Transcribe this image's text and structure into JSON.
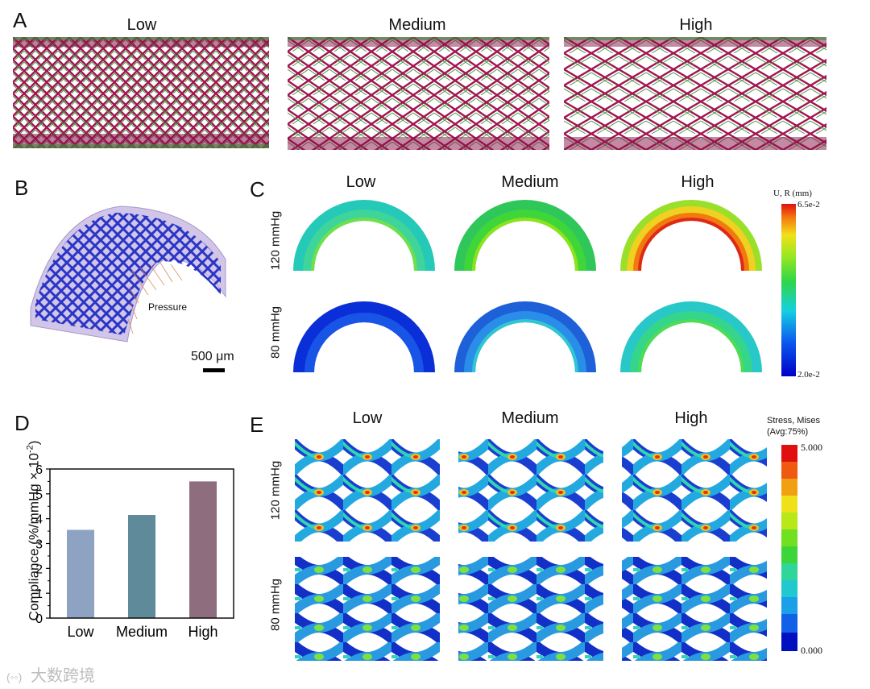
{
  "panels": {
    "a": {
      "label": "A",
      "titles": [
        "Low",
        "Medium",
        "High"
      ]
    },
    "b": {
      "label": "B",
      "pressure_label": "Pressure",
      "scalebar_label": "500 μm"
    },
    "c": {
      "label": "C",
      "titles": [
        "Low",
        "Medium",
        "High"
      ],
      "rows": [
        "120 mmHg",
        "80 mmHg"
      ],
      "colorbar": {
        "title": "U, R (mm)",
        "max": "6.5e-2",
        "min": "2.0e-2"
      }
    },
    "d": {
      "label": "D"
    },
    "e": {
      "label": "E",
      "titles": [
        "Low",
        "Medium",
        "High"
      ],
      "rows": [
        "120 mmHg",
        "80 mmHg"
      ],
      "colorbar": {
        "title_line1": "Stress, Mises",
        "title_line2": "(Avg:75%)",
        "max": "5.000",
        "min": "0.000"
      }
    }
  },
  "chart_data": {
    "type": "bar",
    "categories": [
      "Low",
      "Medium",
      "High"
    ],
    "values": [
      3.55,
      4.15,
      5.5
    ],
    "colors": [
      "#8ea2c2",
      "#5e8a99",
      "#8e6e7e"
    ],
    "ylabel": "Compliance (%/mmHg × 10",
    "ylabel_sup": "-2",
    "ylabel_close": ")",
    "yticks": [
      "0",
      "1",
      "2",
      "3",
      "4",
      "5",
      "6"
    ],
    "ylim": [
      0,
      6
    ]
  },
  "watermark": "大数跨境",
  "colors": {
    "stent_pink": "#c0185e",
    "stent_green": "#3a8a3a",
    "lattice_blue": "#2a35c8",
    "tube_purple": "#b9a6d6"
  }
}
